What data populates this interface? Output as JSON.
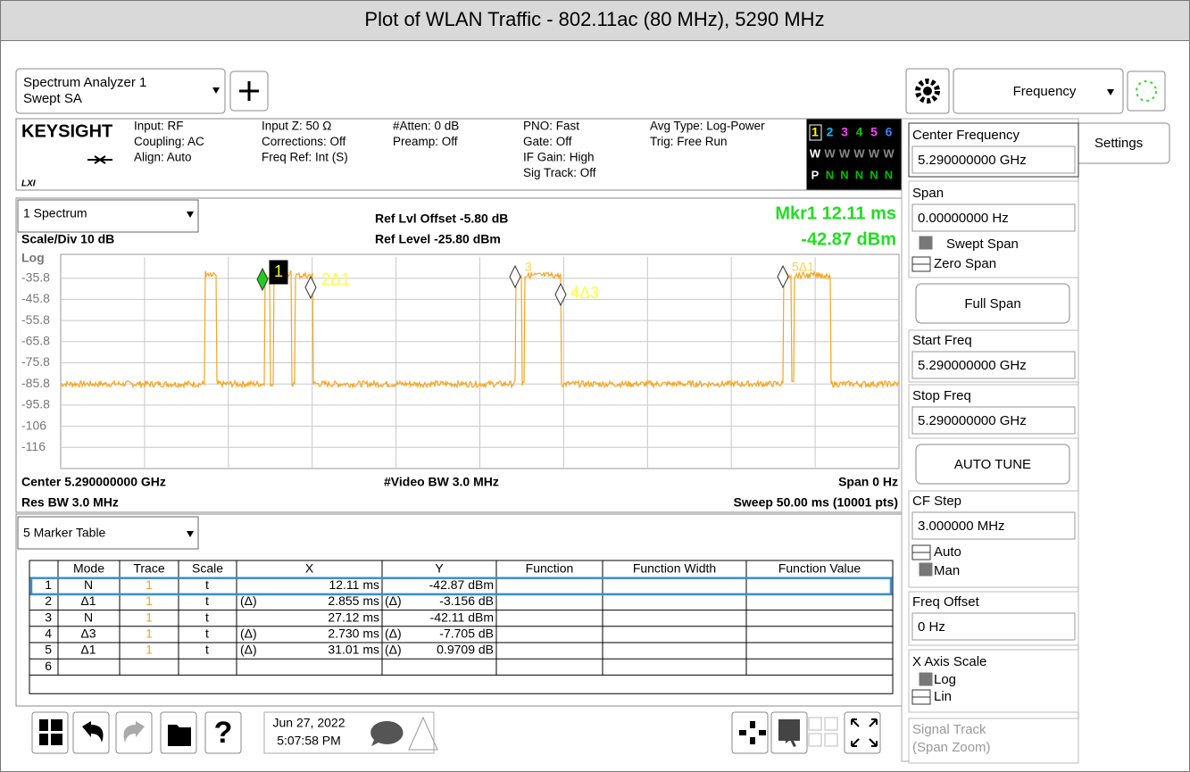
{
  "title": "Plot of WLAN Traffic - 802.11ac (80 MHz), 5290 MHz",
  "instrument": {
    "line1": "Spectrum Analyzer 1",
    "line2": "Swept SA"
  },
  "info": {
    "brand": "KEYSIGHT",
    "lxi": "LXI",
    "col1": [
      "Input: RF",
      "Coupling: AC",
      "Align: Auto"
    ],
    "col2": [
      "Input Z: 50 Ω",
      "Corrections: Off",
      "Freq Ref: Int (S)"
    ],
    "col3": [
      "#Atten: 0 dB",
      "Preamp: Off"
    ],
    "col4": [
      "PNO: Fast",
      "Gate: Off",
      "IF Gain: High",
      "Sig Track: Off"
    ],
    "col5": [
      "Avg Type: Log-Power",
      "Trig: Free Run"
    ],
    "trace_numbers": [
      "1",
      "2",
      "3",
      "4",
      "5",
      "6"
    ],
    "trace_types": [
      "W",
      "W",
      "W",
      "W",
      "W",
      "W"
    ],
    "trace_detectors": [
      "P",
      "N",
      "N",
      "N",
      "N",
      "N"
    ]
  },
  "plot": {
    "window": "1 Spectrum",
    "ref_offset": "Ref Lvl Offset -5.80 dB",
    "ref_level": "Ref Level -25.80 dBm",
    "marker_readout": "Mkr1  12.11 ms",
    "marker_value": "-42.87 dBm",
    "scale": "Scale/Div 10 dB",
    "log": "Log",
    "y_labels": [
      "-35.8",
      "-45.8",
      "-55.8",
      "-65.8",
      "-75.8",
      "-85.8",
      "-95.8",
      "-106",
      "-116"
    ],
    "markers": [
      "1",
      "2Δ1",
      "3",
      "4Δ3",
      "5Δ1"
    ],
    "center": "Center 5.290000000 GHz",
    "video_bw": "#Video BW 3.0 MHz",
    "span": "Span 0 Hz",
    "res_bw": "Res BW 3.0 MHz",
    "sweep": "Sweep 50.00 ms (10001 pts)"
  },
  "table": {
    "window": "5 Marker Table",
    "header": [
      "Mode",
      "Trace",
      "Scale",
      "X",
      "Y",
      "Function",
      "Function Width",
      "Function Value"
    ],
    "rows": [
      {
        "n": "1",
        "mode": "N",
        "trace": "1",
        "scale": "t",
        "x": "12.11 ms",
        "y": "-42.87 dBm"
      },
      {
        "n": "2",
        "mode": "Δ1",
        "trace": "1",
        "scale": "t",
        "x_ref": "(Δ)",
        "x": "2.855 ms",
        "y_ref": "(Δ)",
        "y": "-3.156 dB"
      },
      {
        "n": "3",
        "mode": "N",
        "trace": "1",
        "scale": "t",
        "x": "27.12 ms",
        "y": "-42.11 dBm"
      },
      {
        "n": "4",
        "mode": "Δ3",
        "trace": "1",
        "scale": "t",
        "x_ref": "(Δ)",
        "x": "2.730 ms",
        "y_ref": "(Δ)",
        "y": "-7.705 dB"
      },
      {
        "n": "5",
        "mode": "Δ1",
        "trace": "1",
        "scale": "t",
        "x_ref": "(Δ)",
        "x": "31.01 ms",
        "y_ref": "(Δ)",
        "y": "0.9709 dB"
      },
      {
        "n": "6"
      }
    ]
  },
  "toolbar": {
    "date": "Jun 27, 2022",
    "time": "5:07:58 PM"
  },
  "side": {
    "menu": "Frequency",
    "tab": "Settings",
    "center_label": "Center Frequency",
    "center_value": "5.290000000 GHz",
    "span_label": "Span",
    "span_value": "0.00000000 Hz",
    "swept_span": "Swept Span",
    "zero_span": "Zero Span",
    "full_span": "Full Span",
    "start_label": "Start Freq",
    "start_value": "5.290000000 GHz",
    "stop_label": "Stop Freq",
    "stop_value": "5.290000000 GHz",
    "auto_tune": "AUTO TUNE",
    "cf_label": "CF Step",
    "cf_value": "3.000000 MHz",
    "auto": "Auto",
    "man": "Man",
    "offset_label": "Freq Offset",
    "offset_value": "0 Hz",
    "xscale_label": "X Axis Scale",
    "log": "Log",
    "lin": "Lin",
    "track_label": "Signal Track",
    "track_sub": "(Span Zoom)"
  }
}
